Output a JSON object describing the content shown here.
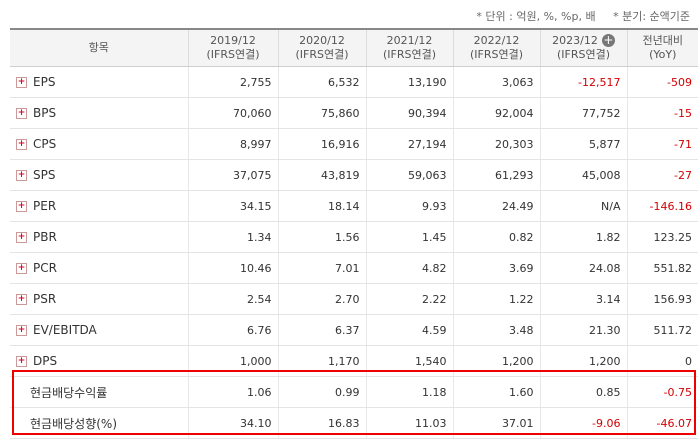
{
  "notes": [
    "* 단위 : 억원, %, %p, 배",
    "* 분기: 순액기준"
  ],
  "header": {
    "item": "항목",
    "cols": [
      {
        "period": "2019/12",
        "basis": "(IFRS연결)"
      },
      {
        "period": "2020/12",
        "basis": "(IFRS연결)"
      },
      {
        "period": "2021/12",
        "basis": "(IFRS연결)"
      },
      {
        "period": "2022/12",
        "basis": "(IFRS연결)"
      },
      {
        "period": "2023/12",
        "basis": "(IFRS연결)"
      }
    ],
    "yoy": "전년대비",
    "yoy_sub": "(YoY)"
  },
  "rows": [
    {
      "label": "EPS",
      "values": [
        "2,755",
        "6,532",
        "13,190",
        "3,063",
        "-12,517",
        "-509"
      ]
    },
    {
      "label": "BPS",
      "values": [
        "70,060",
        "75,860",
        "90,394",
        "92,004",
        "77,752",
        "-15"
      ]
    },
    {
      "label": "CPS",
      "values": [
        "8,997",
        "16,916",
        "27,194",
        "20,303",
        "5,877",
        "-71"
      ]
    },
    {
      "label": "SPS",
      "values": [
        "37,075",
        "43,819",
        "59,063",
        "61,293",
        "45,008",
        "-27"
      ]
    },
    {
      "label": "PER",
      "values": [
        "34.15",
        "18.14",
        "9.93",
        "24.49",
        "N/A",
        "-146.16"
      ]
    },
    {
      "label": "PBR",
      "values": [
        "1.34",
        "1.56",
        "1.45",
        "0.82",
        "1.82",
        "123.25"
      ]
    },
    {
      "label": "PCR",
      "values": [
        "10.46",
        "7.01",
        "4.82",
        "3.69",
        "24.08",
        "551.82"
      ]
    },
    {
      "label": "PSR",
      "values": [
        "2.54",
        "2.70",
        "2.22",
        "1.22",
        "3.14",
        "156.93"
      ]
    },
    {
      "label": "EV/EBITDA",
      "values": [
        "6.76",
        "6.37",
        "4.59",
        "3.48",
        "21.30",
        "511.72"
      ]
    },
    {
      "label": "DPS",
      "values": [
        "1,000",
        "1,170",
        "1,540",
        "1,200",
        "1,200",
        "0"
      ]
    }
  ],
  "highlight_rows": [
    {
      "label": "현금배당수익률",
      "values": [
        "1.06",
        "0.99",
        "1.18",
        "1.60",
        "0.85",
        "-0.75"
      ]
    },
    {
      "label": "현금배당성향(%)",
      "values": [
        "34.10",
        "16.83",
        "11.03",
        "37.01",
        "-9.06",
        "-46.07"
      ]
    }
  ],
  "colors": {
    "negative": "#d40000",
    "highlight_border": "#e00000",
    "expand_icon": "#e5002b"
  }
}
